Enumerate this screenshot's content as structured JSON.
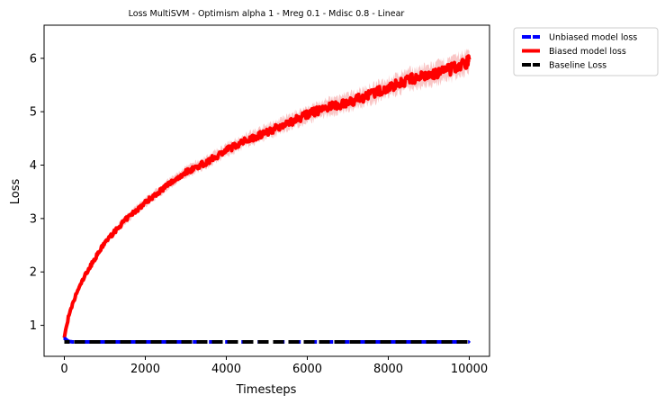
{
  "chart_data": {
    "type": "line",
    "title": "Loss MultiSVM - Optimism alpha 1 - Mreg 0.1 - Mdisc 0.8 - Linear",
    "xlabel": "Timesteps",
    "ylabel": "Loss",
    "xlim": [
      -500,
      10500
    ],
    "ylim": [
      0.42,
      6.62
    ],
    "xticks": [
      0,
      2000,
      4000,
      6000,
      8000,
      10000
    ],
    "yticks": [
      1,
      2,
      3,
      4,
      5,
      6
    ],
    "grid": false,
    "legend_position": "outside-top-right",
    "series": [
      {
        "name": "Unbiased model loss",
        "color": "#0000ff",
        "style": "dashed",
        "x": [
          0,
          100,
          200,
          500,
          1000,
          2000,
          4000,
          6000,
          8000,
          10000
        ],
        "y": [
          0.76,
          0.7,
          0.69,
          0.69,
          0.69,
          0.69,
          0.69,
          0.69,
          0.69,
          0.69
        ]
      },
      {
        "name": "Biased model loss",
        "color": "#ff0000",
        "band_color": "#f9c6c6",
        "style": "solid",
        "x": [
          0,
          100,
          200,
          300,
          500,
          700,
          1000,
          1500,
          2000,
          2500,
          3000,
          3500,
          4000,
          4500,
          5000,
          5500,
          6000,
          6500,
          7000,
          7500,
          8000,
          8500,
          9000,
          9500,
          10000
        ],
        "y": [
          0.78,
          1.15,
          1.38,
          1.6,
          1.92,
          2.18,
          2.55,
          2.97,
          3.3,
          3.6,
          3.87,
          4.05,
          4.28,
          4.47,
          4.62,
          4.78,
          4.95,
          5.08,
          5.17,
          5.3,
          5.45,
          5.6,
          5.68,
          5.78,
          5.95
        ]
      },
      {
        "name": "Baseline Loss",
        "color": "#000000",
        "style": "dashed",
        "x": [
          0,
          10000
        ],
        "y": [
          0.69,
          0.69
        ]
      }
    ]
  }
}
